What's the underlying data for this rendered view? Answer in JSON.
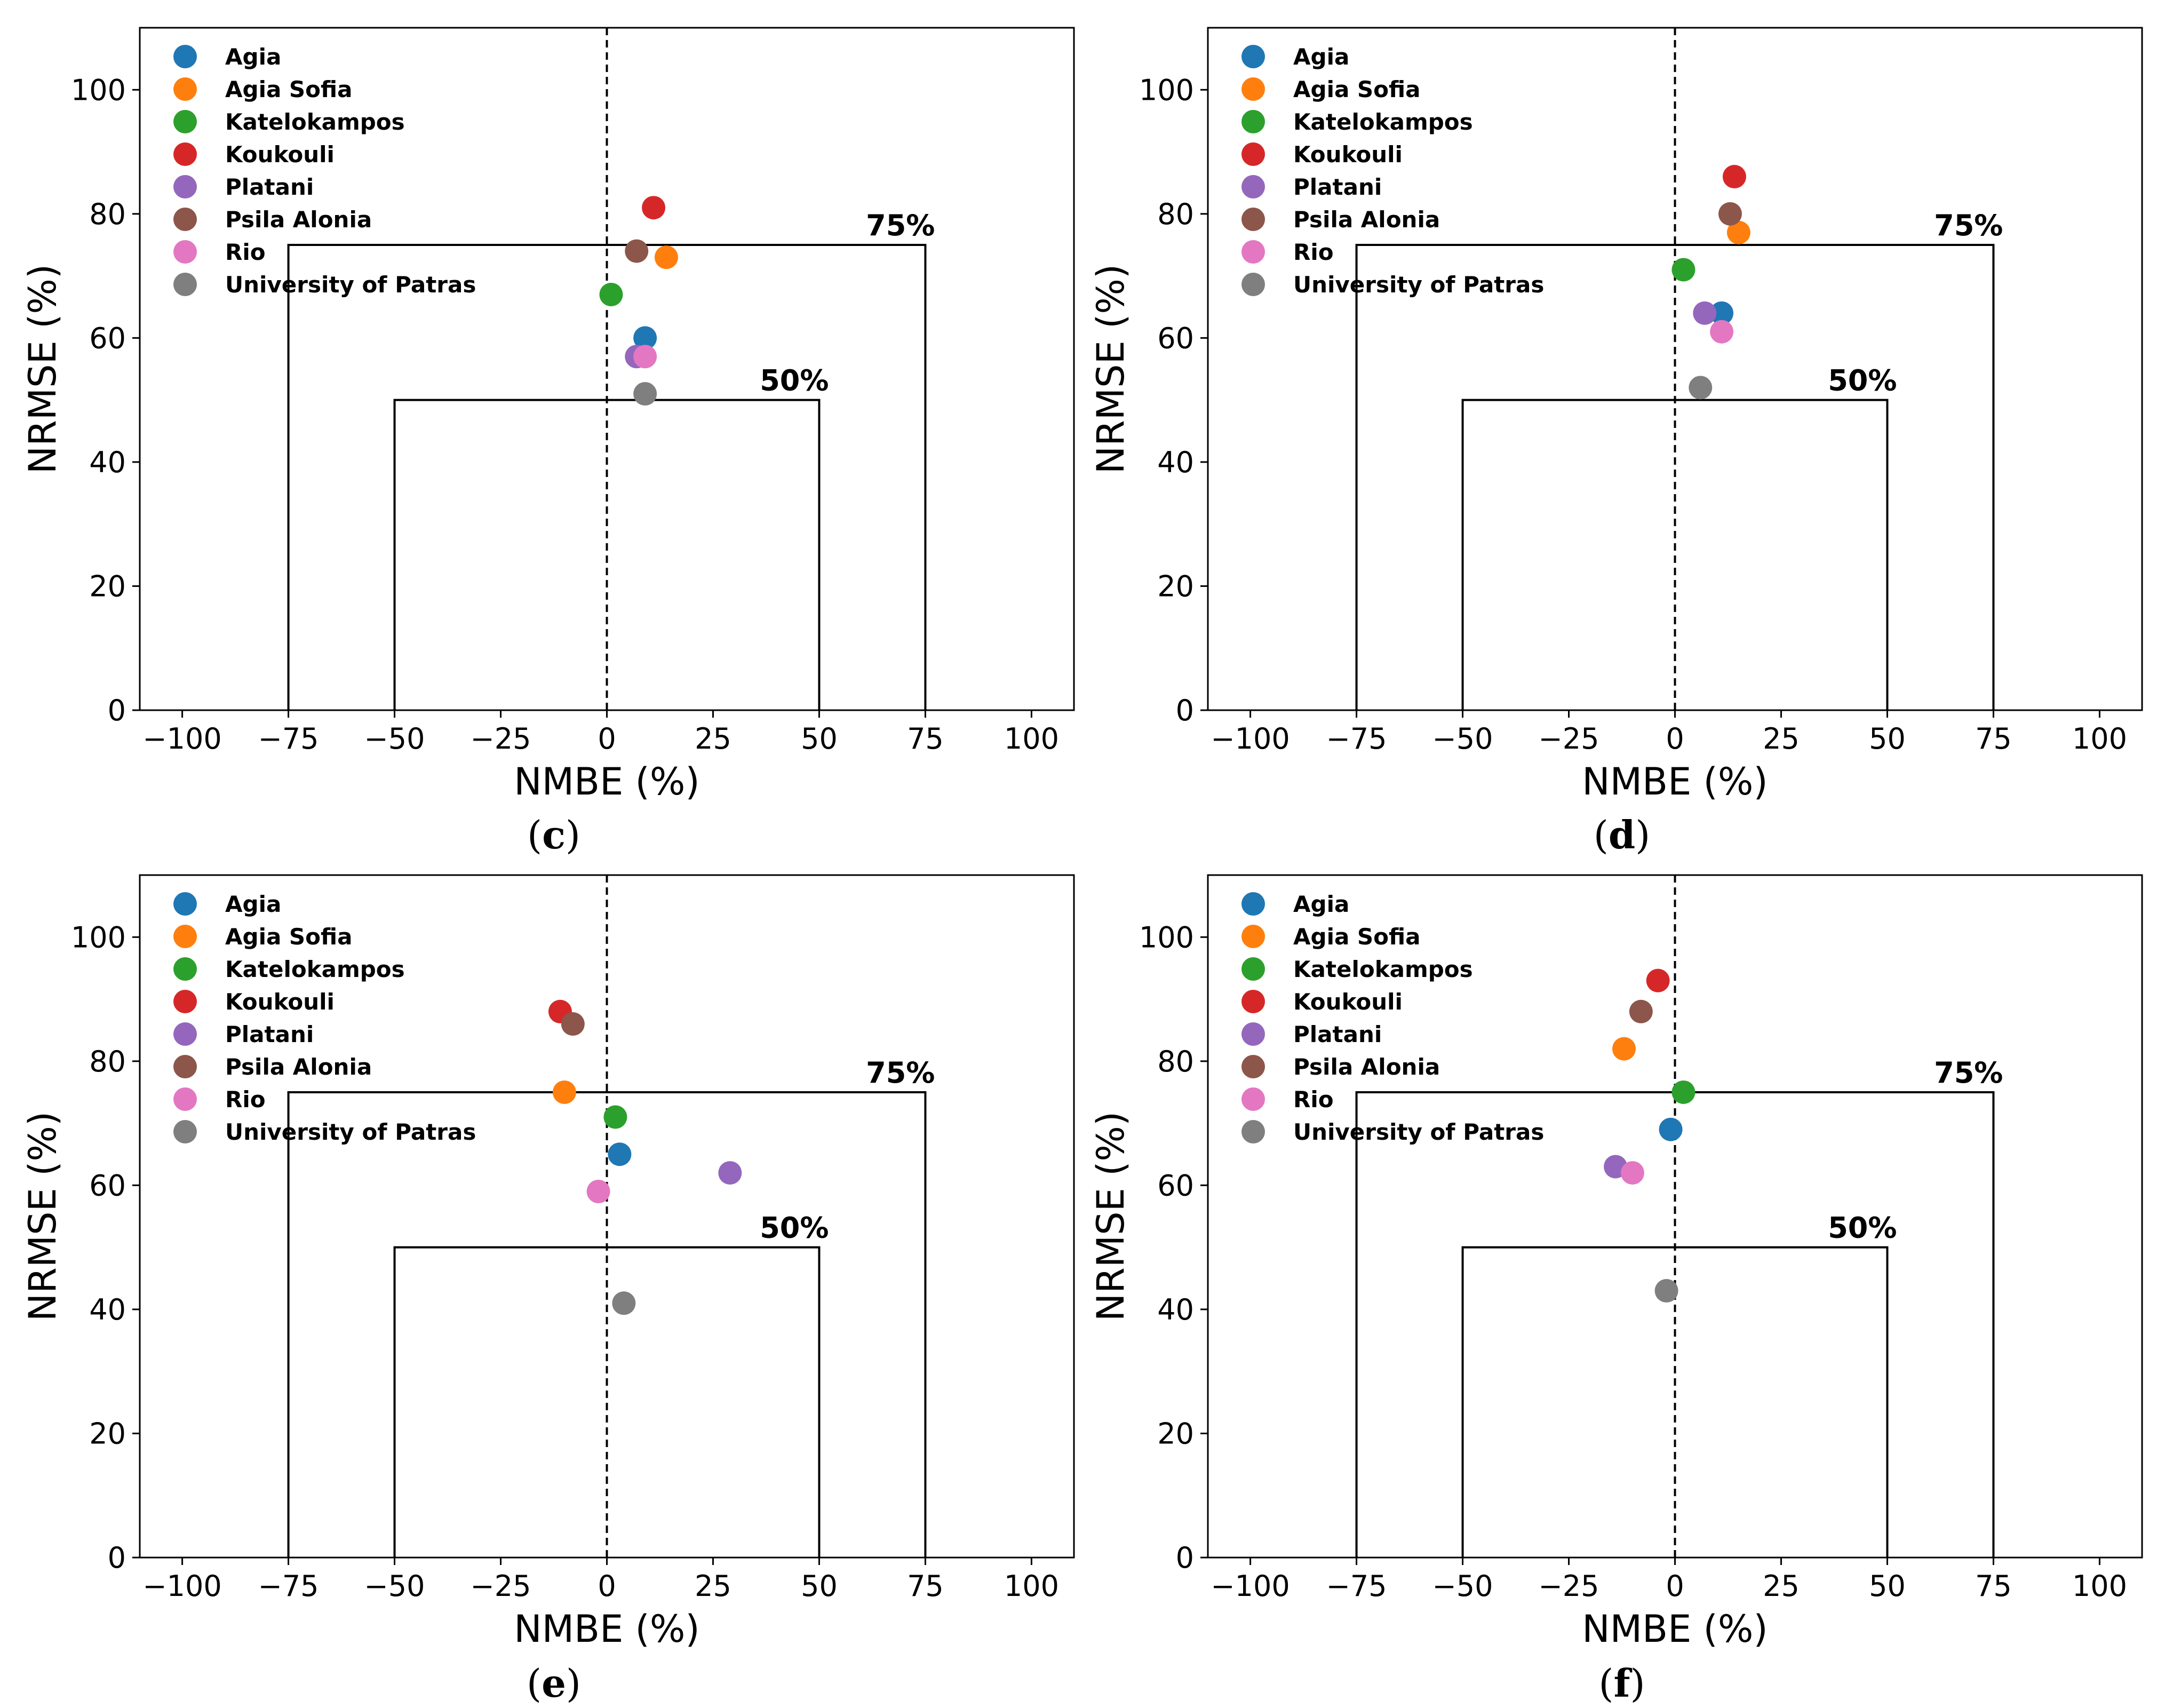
{
  "chart_data": [
    {
      "type": "scatter",
      "panel": "c",
      "title": "",
      "xlabel": "NMBE (%)",
      "ylabel": "NRMSE (%)",
      "xlim": [
        -110,
        110
      ],
      "ylim": [
        0,
        110
      ],
      "xticks": [
        -100,
        -75,
        -50,
        -25,
        0,
        25,
        50,
        75,
        100
      ],
      "yticks": [
        0,
        20,
        40,
        60,
        80,
        100
      ],
      "grid": false,
      "legend_position": "top-left",
      "reference_boxes": [
        {
          "label": "75%",
          "half_width": 75,
          "height": 75
        },
        {
          "label": "50%",
          "half_width": 50,
          "height": 50
        }
      ],
      "series": [
        {
          "name": "Agia",
          "color": "#1f77b4",
          "x": 9,
          "y": 60
        },
        {
          "name": "Agia Sofia",
          "color": "#ff7f0e",
          "x": 14,
          "y": 73
        },
        {
          "name": "Katelokampos",
          "color": "#2ca02c",
          "x": 1,
          "y": 67
        },
        {
          "name": "Koukouli",
          "color": "#d62728",
          "x": 11,
          "y": 81
        },
        {
          "name": "Platani",
          "color": "#9467bd",
          "x": 7,
          "y": 57
        },
        {
          "name": "Psila Alonia",
          "color": "#8c564b",
          "x": 7,
          "y": 74
        },
        {
          "name": "Rio",
          "color": "#e377c2",
          "x": 9,
          "y": 57
        },
        {
          "name": "University of Patras",
          "color": "#7f7f7f",
          "x": 9,
          "y": 51
        }
      ]
    },
    {
      "type": "scatter",
      "panel": "d",
      "title": "",
      "xlabel": "NMBE (%)",
      "ylabel": "NRMSE (%)",
      "xlim": [
        -110,
        110
      ],
      "ylim": [
        0,
        110
      ],
      "xticks": [
        -100,
        -75,
        -50,
        -25,
        0,
        25,
        50,
        75,
        100
      ],
      "yticks": [
        0,
        20,
        40,
        60,
        80,
        100
      ],
      "grid": false,
      "legend_position": "top-left",
      "reference_boxes": [
        {
          "label": "75%",
          "half_width": 75,
          "height": 75
        },
        {
          "label": "50%",
          "half_width": 50,
          "height": 50
        }
      ],
      "series": [
        {
          "name": "Agia",
          "color": "#1f77b4",
          "x": 11,
          "y": 64
        },
        {
          "name": "Agia Sofia",
          "color": "#ff7f0e",
          "x": 15,
          "y": 77
        },
        {
          "name": "Katelokampos",
          "color": "#2ca02c",
          "x": 2,
          "y": 71
        },
        {
          "name": "Koukouli",
          "color": "#d62728",
          "x": 14,
          "y": 86
        },
        {
          "name": "Platani",
          "color": "#9467bd",
          "x": 7,
          "y": 64
        },
        {
          "name": "Psila Alonia",
          "color": "#8c564b",
          "x": 13,
          "y": 80
        },
        {
          "name": "Rio",
          "color": "#e377c2",
          "x": 11,
          "y": 61
        },
        {
          "name": "University of Patras",
          "color": "#7f7f7f",
          "x": 6,
          "y": 52
        }
      ]
    },
    {
      "type": "scatter",
      "panel": "e",
      "title": "",
      "xlabel": "NMBE (%)",
      "ylabel": "NRMSE (%)",
      "xlim": [
        -110,
        110
      ],
      "ylim": [
        0,
        110
      ],
      "xticks": [
        -100,
        -75,
        -50,
        -25,
        0,
        25,
        50,
        75,
        100
      ],
      "yticks": [
        0,
        20,
        40,
        60,
        80,
        100
      ],
      "grid": false,
      "legend_position": "top-left",
      "reference_boxes": [
        {
          "label": "75%",
          "half_width": 75,
          "height": 75
        },
        {
          "label": "50%",
          "half_width": 50,
          "height": 50
        }
      ],
      "series": [
        {
          "name": "Agia",
          "color": "#1f77b4",
          "x": 3,
          "y": 65
        },
        {
          "name": "Agia Sofia",
          "color": "#ff7f0e",
          "x": -10,
          "y": 75
        },
        {
          "name": "Katelokampos",
          "color": "#2ca02c",
          "x": 2,
          "y": 71
        },
        {
          "name": "Koukouli",
          "color": "#d62728",
          "x": -11,
          "y": 88
        },
        {
          "name": "Platani",
          "color": "#9467bd",
          "x": 29,
          "y": 62
        },
        {
          "name": "Psila Alonia",
          "color": "#8c564b",
          "x": -8,
          "y": 86
        },
        {
          "name": "Rio",
          "color": "#e377c2",
          "x": -2,
          "y": 59
        },
        {
          "name": "University of Patras",
          "color": "#7f7f7f",
          "x": 4,
          "y": 41
        }
      ]
    },
    {
      "type": "scatter",
      "panel": "f",
      "title": "",
      "xlabel": "NMBE (%)",
      "ylabel": "NRMSE (%)",
      "xlim": [
        -110,
        110
      ],
      "ylim": [
        0,
        110
      ],
      "xticks": [
        -100,
        -75,
        -50,
        -25,
        0,
        25,
        50,
        75,
        100
      ],
      "yticks": [
        0,
        20,
        40,
        60,
        80,
        100
      ],
      "grid": false,
      "legend_position": "top-left",
      "reference_boxes": [
        {
          "label": "75%",
          "half_width": 75,
          "height": 75
        },
        {
          "label": "50%",
          "half_width": 50,
          "height": 50
        }
      ],
      "series": [
        {
          "name": "Agia",
          "color": "#1f77b4",
          "x": -1,
          "y": 69
        },
        {
          "name": "Agia Sofia",
          "color": "#ff7f0e",
          "x": -12,
          "y": 82
        },
        {
          "name": "Katelokampos",
          "color": "#2ca02c",
          "x": 2,
          "y": 75
        },
        {
          "name": "Koukouli",
          "color": "#d62728",
          "x": -4,
          "y": 93
        },
        {
          "name": "Platani",
          "color": "#9467bd",
          "x": -14,
          "y": 63
        },
        {
          "name": "Psila Alonia",
          "color": "#8c564b",
          "x": -8,
          "y": 88
        },
        {
          "name": "Rio",
          "color": "#e377c2",
          "x": -10,
          "y": 62
        },
        {
          "name": "University of Patras",
          "color": "#7f7f7f",
          "x": -2,
          "y": 43
        }
      ]
    }
  ]
}
